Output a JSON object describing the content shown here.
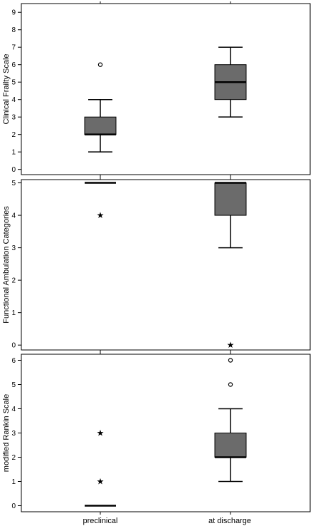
{
  "chart_data": [
    {
      "type": "boxplot",
      "ylabel": "Clinical Frailty Scale",
      "categories": [
        "preclinical",
        "at discharge"
      ],
      "ylim": [
        -0.3,
        9.5
      ],
      "yticks": [
        0,
        1,
        2,
        3,
        4,
        5,
        6,
        7,
        8,
        9
      ],
      "boxes": [
        {
          "category": "preclinical",
          "whisker_low": 1,
          "q1": 2,
          "median": 2,
          "q3": 3,
          "whisker_high": 4,
          "outliers": [
            {
              "value": 6,
              "symbol": "circle"
            }
          ]
        },
        {
          "category": "at discharge",
          "whisker_low": 3,
          "q1": 4,
          "median": 5,
          "q3": 6,
          "whisker_high": 7,
          "outliers": []
        }
      ],
      "box_color": "#6b6b6b"
    },
    {
      "type": "boxplot",
      "ylabel": "Functional Ambulation Categories",
      "categories": [
        "preclinical",
        "at discharge"
      ],
      "ylim": [
        -0.15,
        5.1
      ],
      "yticks": [
        0,
        1,
        2,
        3,
        4,
        5
      ],
      "boxes": [
        {
          "category": "preclinical",
          "whisker_low": 5,
          "q1": 5,
          "median": 5,
          "q3": 5,
          "whisker_high": 5,
          "outliers": [
            {
              "value": 4,
              "symbol": "star"
            }
          ]
        },
        {
          "category": "at discharge",
          "whisker_low": 3,
          "q1": 4,
          "median": 5,
          "q3": 5,
          "whisker_high": 5,
          "outliers": [
            {
              "value": 0,
              "symbol": "star"
            }
          ]
        }
      ],
      "box_color": "#6b6b6b"
    },
    {
      "type": "boxplot",
      "ylabel": "modified Rankin Scale",
      "categories": [
        "preclinical",
        "at discharge"
      ],
      "ylim": [
        -0.25,
        6.25
      ],
      "yticks": [
        0,
        1,
        2,
        3,
        4,
        5,
        6
      ],
      "boxes": [
        {
          "category": "preclinical",
          "whisker_low": 0,
          "q1": 0,
          "median": 0,
          "q3": 0,
          "whisker_high": 0,
          "outliers": [
            {
              "value": 1,
              "symbol": "star"
            },
            {
              "value": 3,
              "symbol": "star"
            }
          ]
        },
        {
          "category": "at discharge",
          "whisker_low": 1,
          "q1": 2,
          "median": 2,
          "q3": 3,
          "whisker_high": 4,
          "outliers": [
            {
              "value": 5,
              "symbol": "circle"
            },
            {
              "value": 6,
              "symbol": "circle"
            }
          ]
        }
      ],
      "box_color": "#6b6b6b"
    }
  ],
  "xaxis": {
    "categories": [
      "preclinical",
      "at discharge"
    ]
  }
}
